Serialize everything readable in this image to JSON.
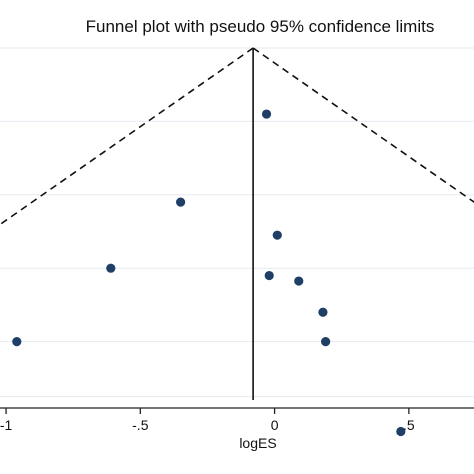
{
  "chart_data": {
    "type": "scatter",
    "title": "Funnel plot with pseudo 95% confidence limits",
    "xlabel": "logES",
    "ylabel": "",
    "xlim": [
      -1.03,
      0.75
    ],
    "ylim": [
      0,
      0.97
    ],
    "y_reversed": true,
    "x_ticks": [
      -1,
      -0.5,
      0,
      0.5
    ],
    "x_tick_labels": [
      "-1",
      "-.5",
      "0",
      ".5"
    ],
    "y_gridlines": [
      0,
      0.2,
      0.4,
      0.6,
      0.8,
      0.95
    ],
    "pooled_estimate": -0.08,
    "funnel_slope": 1.96,
    "points": [
      {
        "x": -0.03,
        "y": 0.18
      },
      {
        "x": -0.35,
        "y": 0.42
      },
      {
        "x": 0.01,
        "y": 0.51
      },
      {
        "x": -0.61,
        "y": 0.6
      },
      {
        "x": -0.02,
        "y": 0.62
      },
      {
        "x": 0.09,
        "y": 0.635
      },
      {
        "x": 0.18,
        "y": 0.72
      },
      {
        "x": -0.96,
        "y": 0.8
      },
      {
        "x": 0.19,
        "y": 0.8
      },
      {
        "x": 0.47,
        "y": 1.045
      }
    ],
    "colors": {
      "point": "#1f3f66",
      "grid": "#e4ebf1",
      "axis": "#222222",
      "funnel": "#111111"
    }
  }
}
